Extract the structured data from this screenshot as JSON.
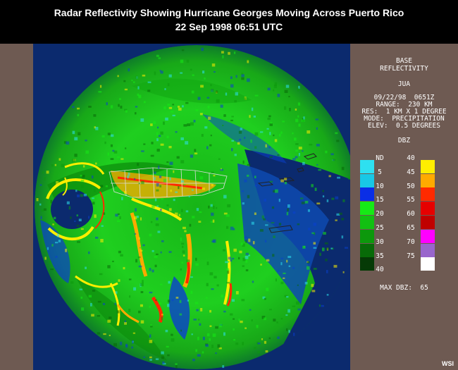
{
  "title": {
    "line1": "Radar Reflectivity Showing Hurricane Georges Moving Across Puerto Rico",
    "line2": "22 Sep 1998 06:51 UTC"
  },
  "panel": {
    "product": "BASE",
    "product2": "REFLECTIVITY",
    "site": "JUA",
    "datetime": "09/22/98  0651Z",
    "range": "RANGE:  230 KM",
    "res": "RES:  1 KM X 1 DEGREE",
    "mode": "MODE:  PRECIPITATION",
    "elev": "ELEV:  0.5 DEGREES",
    "units": "DBZ",
    "max_dbz": "MAX DBZ:  65"
  },
  "legend": {
    "left": [
      {
        "label": "ND",
        "color": ""
      },
      {
        "label": "5",
        "color": "#2ee0f0"
      },
      {
        "label": "10",
        "color": "#18c8e6"
      },
      {
        "label": "15",
        "color": "#0a2ee6"
      },
      {
        "label": "20",
        "color": "#16ea16"
      },
      {
        "label": "25",
        "color": "#12c012"
      },
      {
        "label": "30",
        "color": "#0c980c"
      },
      {
        "label": "35",
        "color": "#086a08"
      },
      {
        "label": "40",
        "color": "#063a06"
      }
    ],
    "right": [
      {
        "label": "40",
        "color": ""
      },
      {
        "label": "45",
        "color": "#ffee00"
      },
      {
        "label": "50",
        "color": "#ffaa00"
      },
      {
        "label": "55",
        "color": "#ff2a00"
      },
      {
        "label": "60",
        "color": "#e60000"
      },
      {
        "label": "65",
        "color": "#c00000"
      },
      {
        "label": "70",
        "color": "#ff00ff"
      },
      {
        "label": "75",
        "color": "#9966cc"
      },
      {
        "label": "",
        "color": "#ffffff"
      }
    ]
  },
  "logo": "WSI"
}
